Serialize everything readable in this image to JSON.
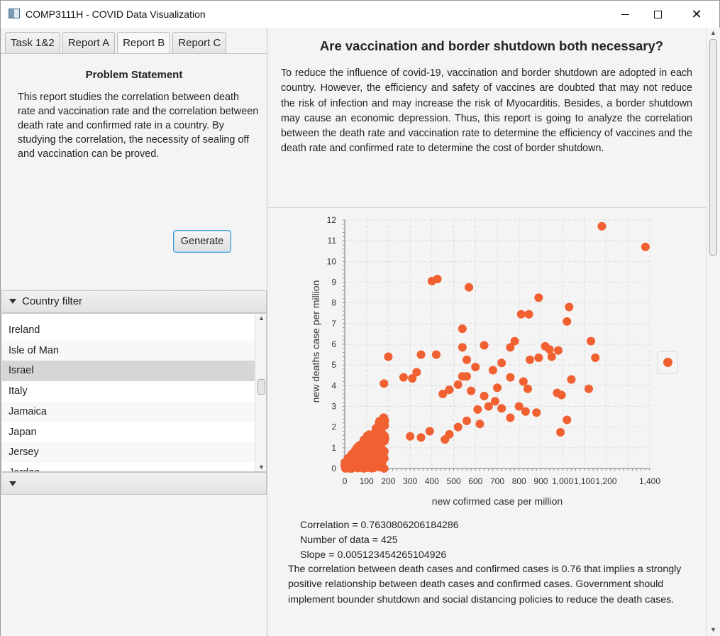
{
  "window": {
    "title": "COMP3111H - COVID Data Visualization"
  },
  "tabs": [
    {
      "label": "Task 1&2",
      "active": false
    },
    {
      "label": "Report A",
      "active": false
    },
    {
      "label": "Report B",
      "active": true
    },
    {
      "label": "Report C",
      "active": false
    }
  ],
  "left": {
    "problem_title": "Problem Statement",
    "problem_text": "This report studies the correlation between death rate and vaccination rate and the correlation between death rate and confirmed rate in a country. By studying the correlation, the necessity of sealing off and vaccination can be proved.",
    "generate_label": "Generate",
    "country_filter": {
      "header": "Country filter",
      "items": [
        "Ireland",
        "Isle of Man",
        "Israel",
        "Italy",
        "Jamaica",
        "Japan",
        "Jersey",
        "Jordan"
      ],
      "selected": "Israel"
    }
  },
  "report": {
    "title": "Are vaccination and border shutdown both necessary?",
    "intro": "To reduce the influence of covid-19, vaccination and border shutdown are adopted in each country. However, the efficiency and safety of vaccines are doubted that may not reduce the risk of infection and may increase the risk of Myocarditis. Besides, a border shutdown may cause an economic depression. Thus, this report is going to analyze the correlation between the death rate and vaccination rate to determine the efficiency of vaccines and the death rate and confirmed rate to determine the cost of border shutdown.",
    "stats": {
      "correlation": "Correlation = 0.7630806206184286",
      "count": "Number of data = 425",
      "slope": "Slope = 0.005123454265104926"
    },
    "conclusion": "The correlation between death cases and confirmed cases is 0.76 that implies a strongly positive relationship between death cases and confirmed cases. Government should implement bounder shutdown and social distancing policies to reduce the death cases."
  },
  "colors": {
    "point": "#f06030",
    "selection": "#d6d6d6",
    "focus": "#3a9bd8"
  },
  "chart_data": {
    "type": "scatter",
    "title": "",
    "xlabel": "new cofirmed case per million",
    "ylabel": "new deaths case per million",
    "xlim": [
      0,
      1400
    ],
    "ylim": [
      0,
      12
    ],
    "x_ticks": [
      "0",
      "100",
      "200",
      "300",
      "400",
      "500",
      "600",
      "700",
      "800",
      "900",
      "1,000",
      "1,100",
      "1,200",
      "1,400"
    ],
    "y_ticks": [
      "0",
      "1",
      "2",
      "3",
      "4",
      "5",
      "6",
      "7",
      "8",
      "9",
      "10",
      "11",
      "12"
    ],
    "grid": true,
    "legend_position": "right",
    "series": [
      {
        "points": [
          [
            1180,
            11.7
          ],
          [
            1380,
            10.7
          ],
          [
            400,
            9.05
          ],
          [
            425,
            9.15
          ],
          [
            570,
            8.75
          ],
          [
            890,
            8.25
          ],
          [
            1030,
            7.8
          ],
          [
            810,
            7.45
          ],
          [
            845,
            7.45
          ],
          [
            1020,
            7.1
          ],
          [
            540,
            6.75
          ],
          [
            1130,
            6.15
          ],
          [
            780,
            6.15
          ],
          [
            920,
            5.9
          ],
          [
            940,
            5.75
          ],
          [
            980,
            5.7
          ],
          [
            760,
            5.85
          ],
          [
            640,
            5.95
          ],
          [
            540,
            5.85
          ],
          [
            950,
            5.4
          ],
          [
            890,
            5.35
          ],
          [
            1150,
            5.35
          ],
          [
            850,
            5.25
          ],
          [
            720,
            5.1
          ],
          [
            560,
            5.25
          ],
          [
            600,
            4.9
          ],
          [
            680,
            4.75
          ],
          [
            1040,
            4.3
          ],
          [
            760,
            4.4
          ],
          [
            820,
            4.2
          ],
          [
            1120,
            3.85
          ],
          [
            975,
            3.65
          ],
          [
            995,
            3.55
          ],
          [
            840,
            3.85
          ],
          [
            700,
            3.9
          ],
          [
            580,
            3.75
          ],
          [
            640,
            3.5
          ],
          [
            690,
            3.25
          ],
          [
            560,
            4.45
          ],
          [
            540,
            4.45
          ],
          [
            520,
            4.05
          ],
          [
            480,
            3.8
          ],
          [
            450,
            3.6
          ],
          [
            350,
            5.5
          ],
          [
            420,
            5.5
          ],
          [
            200,
            5.4
          ],
          [
            310,
            4.35
          ],
          [
            330,
            4.65
          ],
          [
            270,
            4.4
          ],
          [
            180,
            4.1
          ],
          [
            660,
            3.0
          ],
          [
            720,
            2.9
          ],
          [
            800,
            3.0
          ],
          [
            830,
            2.75
          ],
          [
            880,
            2.7
          ],
          [
            1020,
            2.35
          ],
          [
            990,
            1.75
          ],
          [
            760,
            2.45
          ],
          [
            610,
            2.85
          ],
          [
            560,
            2.3
          ],
          [
            620,
            2.15
          ],
          [
            520,
            2.0
          ],
          [
            480,
            1.65
          ],
          [
            460,
            1.4
          ],
          [
            390,
            1.8
          ],
          [
            350,
            1.5
          ],
          [
            300,
            1.55
          ],
          [
            150,
            1.2
          ]
        ]
      }
    ]
  }
}
